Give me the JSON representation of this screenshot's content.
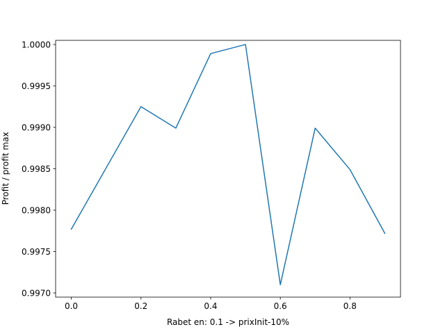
{
  "chart_data": {
    "type": "line",
    "title": "",
    "xlabel": "Rabet en: 0.1 -> prixInit-10%",
    "ylabel": "Profit / profit max",
    "xlim": [
      -0.045,
      0.945
    ],
    "ylim": [
      0.99695,
      1.00005
    ],
    "grid": false,
    "x": [
      0.0,
      0.1,
      0.2,
      0.3,
      0.4,
      0.5,
      0.6,
      0.7,
      0.8,
      0.9
    ],
    "series": [
      {
        "color": "#1f77b4",
        "values": [
          0.99777,
          0.99851,
          0.99925,
          0.99899,
          0.99989,
          1.0,
          0.9971,
          0.99899,
          0.99849,
          0.99772
        ]
      }
    ],
    "xticks": [
      0.0,
      0.2,
      0.4,
      0.6,
      0.8
    ],
    "xtick_labels": [
      "0.0",
      "0.2",
      "0.4",
      "0.6",
      "0.8"
    ],
    "yticks": [
      0.997,
      0.9975,
      0.998,
      0.9985,
      0.999,
      0.9995,
      1.0
    ],
    "ytick_labels": [
      "0.9970",
      "0.9975",
      "0.9980",
      "0.9985",
      "0.9990",
      "0.9995",
      "1.0000"
    ]
  }
}
